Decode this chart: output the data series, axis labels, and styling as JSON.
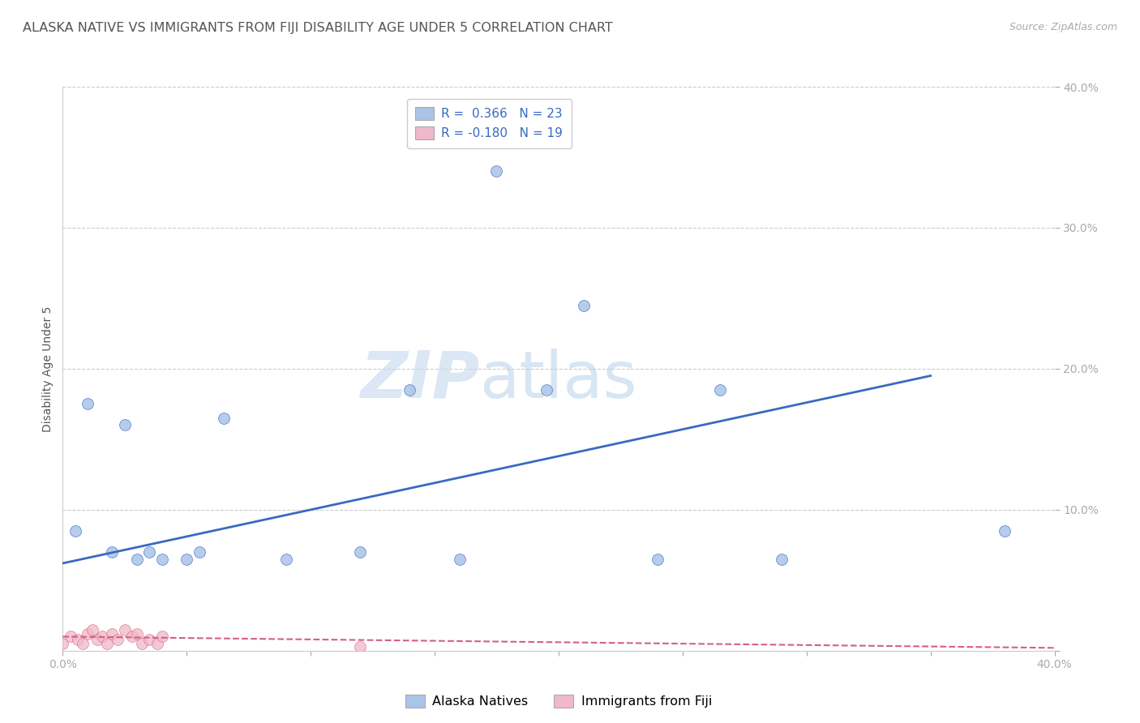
{
  "title": "ALASKA NATIVE VS IMMIGRANTS FROM FIJI DISABILITY AGE UNDER 5 CORRELATION CHART",
  "source": "Source: ZipAtlas.com",
  "ylabel": "Disability Age Under 5",
  "watermark_zip": "ZIP",
  "watermark_atlas": "atlas",
  "background_color": "#ffffff",
  "plot_bg_color": "#ffffff",
  "grid_color": "#cccccc",
  "xmin": 0.0,
  "xmax": 0.4,
  "ymin": 0.0,
  "ymax": 0.4,
  "x_ticks": [
    0.0,
    0.05,
    0.1,
    0.15,
    0.2,
    0.25,
    0.3,
    0.35,
    0.4
  ],
  "x_tick_labels": [
    "0.0%",
    "",
    "",
    "",
    "",
    "",
    "",
    "",
    "40.0%"
  ],
  "y_ticks": [
    0.0,
    0.1,
    0.2,
    0.3,
    0.4
  ],
  "y_tick_labels": [
    "",
    "10.0%",
    "20.0%",
    "30.0%",
    "40.0%"
  ],
  "blue_scatter_x": [
    0.005,
    0.01,
    0.02,
    0.025,
    0.03,
    0.035,
    0.04,
    0.05,
    0.055,
    0.065,
    0.09,
    0.12,
    0.14,
    0.175,
    0.16,
    0.195,
    0.21,
    0.24,
    0.265,
    0.29,
    0.38
  ],
  "blue_scatter_y": [
    0.085,
    0.175,
    0.07,
    0.16,
    0.065,
    0.07,
    0.065,
    0.065,
    0.07,
    0.165,
    0.065,
    0.07,
    0.185,
    0.34,
    0.065,
    0.185,
    0.245,
    0.065,
    0.185,
    0.065,
    0.085
  ],
  "pink_scatter_x": [
    0.0,
    0.003,
    0.006,
    0.008,
    0.01,
    0.012,
    0.014,
    0.016,
    0.018,
    0.02,
    0.022,
    0.025,
    0.028,
    0.03,
    0.032,
    0.035,
    0.038,
    0.04,
    0.12
  ],
  "pink_scatter_y": [
    0.005,
    0.01,
    0.008,
    0.005,
    0.012,
    0.015,
    0.008,
    0.01,
    0.005,
    0.012,
    0.008,
    0.015,
    0.01,
    0.012,
    0.005,
    0.008,
    0.005,
    0.01,
    0.003
  ],
  "blue_line_x": [
    0.0,
    0.35
  ],
  "blue_line_y": [
    0.062,
    0.195
  ],
  "pink_line_x": [
    0.0,
    0.4
  ],
  "pink_line_y": [
    0.01,
    0.002
  ],
  "blue_color": "#aac4e8",
  "blue_line_color": "#3a6abf",
  "pink_color": "#f0b8c8",
  "pink_line_color": "#d46080",
  "scatter_size": 100,
  "title_fontsize": 11.5,
  "axis_label_fontsize": 10,
  "tick_fontsize": 10,
  "legend_fontsize": 11,
  "source_fontsize": 9
}
